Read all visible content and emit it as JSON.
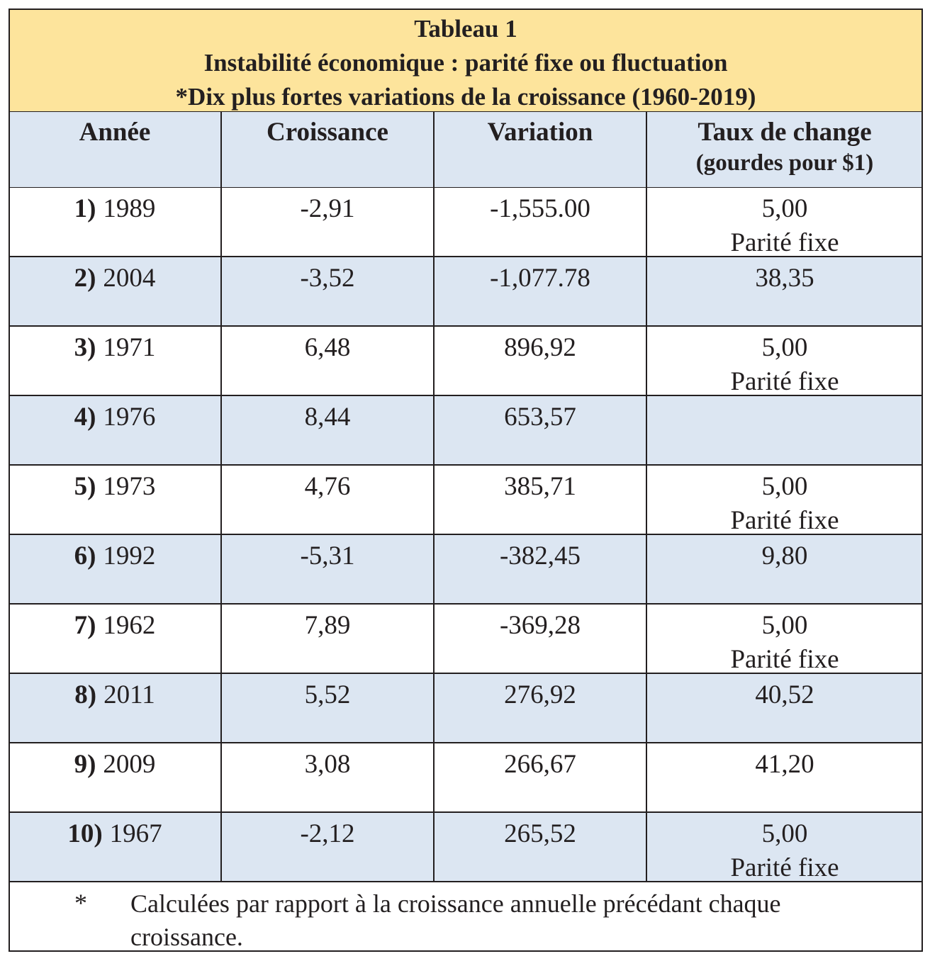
{
  "header": {
    "title_lines": [
      "Tableau 1",
      "Instabilité économique : parité fixe ou fluctuation",
      "*Dix plus fortes variations de la croissance (1960-2019)"
    ]
  },
  "table": {
    "columns": [
      [
        "Année"
      ],
      [
        "Croissance"
      ],
      [
        "Variation"
      ],
      [
        "Taux de change",
        "(gourdes pour $1)"
      ]
    ],
    "rows": [
      {
        "rank": "1)",
        "year": "1989",
        "croissance": "-2,91",
        "variation": "-1,555.00",
        "taux": "5,00",
        "note": "Parité fixe"
      },
      {
        "rank": "2)",
        "year": "2004",
        "croissance": "-3,52",
        "variation": "-1,077.78",
        "taux": "38,35"
      },
      {
        "rank": "3)",
        "year": "1971",
        "croissance": "6,48",
        "variation": "896,92",
        "taux": "5,00",
        "note": "Parité fixe"
      },
      {
        "rank": "4)",
        "year": "1976",
        "croissance": "8,44",
        "variation": "653,57"
      },
      {
        "rank": "5)",
        "year": "1973",
        "croissance": "4,76",
        "variation": "385,71",
        "taux": "5,00",
        "note": "Parité fixe"
      },
      {
        "rank": "6)",
        "year": "1992",
        "croissance": "-5,31",
        "variation": "-382,45",
        "taux": "9,80"
      },
      {
        "rank": "7)",
        "year": "1962",
        "croissance": "7,89",
        "variation": "-369,28",
        "taux": "5,00",
        "note": "Parité fixe"
      },
      {
        "rank": "8)",
        "year": "2011",
        "croissance": "5,52",
        "variation": "276,92",
        "taux": "40,52"
      },
      {
        "rank": "9)",
        "year": "2009",
        "croissance": "3,08",
        "variation": "266,67",
        "taux": "41,20"
      },
      {
        "rank": "10)",
        "year": "1967",
        "croissance": "-2,12",
        "variation": "265,52",
        "taux": "5,00",
        "note": "Parité fixe"
      }
    ]
  },
  "footnote": {
    "marker": "*",
    "text": "Calculées par rapport à la croissance annuelle précédant chaque croissance."
  }
}
